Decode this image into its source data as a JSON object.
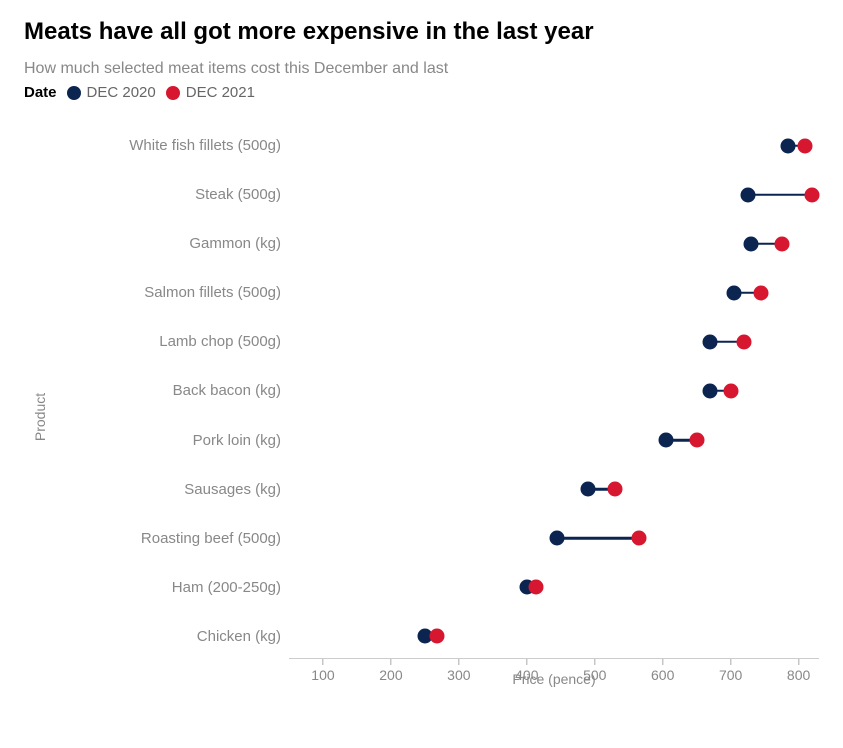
{
  "title": "Meats have all got more expensive in the last year",
  "subtitle": "How much selected meat items cost this December and last",
  "legend": {
    "variable_label": "Date",
    "series": [
      {
        "name": "DEC 2020",
        "color": "#0c2550"
      },
      {
        "name": "DEC 2021",
        "color": "#d6172f"
      }
    ]
  },
  "chart": {
    "type": "dumbbell",
    "x_axis": {
      "title": "Price (pence)",
      "min": 50,
      "max": 830,
      "ticks": [
        100,
        200,
        300,
        400,
        500,
        600,
        700,
        800
      ],
      "tick_fontsize": 14,
      "title_fontsize": 14,
      "label_color": "#888888",
      "axis_line_color": "#cccccc"
    },
    "y_axis": {
      "title": "Product",
      "label_fontsize": 15,
      "label_color": "#888888",
      "title_fontsize": 14
    },
    "connector_color": "#0c2550",
    "connector_width": 2.5,
    "dot_radius": 7.5,
    "data": [
      {
        "label": "White fish fillets (500g)",
        "v2020": 785,
        "v2021": 810
      },
      {
        "label": "Steak (500g)",
        "v2020": 725,
        "v2021": 820
      },
      {
        "label": "Gammon (kg)",
        "v2020": 730,
        "v2021": 775
      },
      {
        "label": "Salmon fillets (500g)",
        "v2020": 705,
        "v2021": 745
      },
      {
        "label": "Lamb chop (500g)",
        "v2020": 670,
        "v2021": 720
      },
      {
        "label": "Back bacon (kg)",
        "v2020": 670,
        "v2021": 700
      },
      {
        "label": "Pork loin (kg)",
        "v2020": 605,
        "v2021": 650
      },
      {
        "label": "Sausages (kg)",
        "v2020": 490,
        "v2021": 530
      },
      {
        "label": "Roasting beef (500g)",
        "v2020": 445,
        "v2021": 565
      },
      {
        "label": "Ham (200-250g)",
        "v2020": 400,
        "v2021": 413
      },
      {
        "label": "Chicken (kg)",
        "v2020": 250,
        "v2021": 268
      }
    ],
    "background_color": "#ffffff",
    "title_fontsize": 24,
    "title_color": "#000000",
    "subtitle_fontsize": 16,
    "subtitle_color": "#888888"
  }
}
